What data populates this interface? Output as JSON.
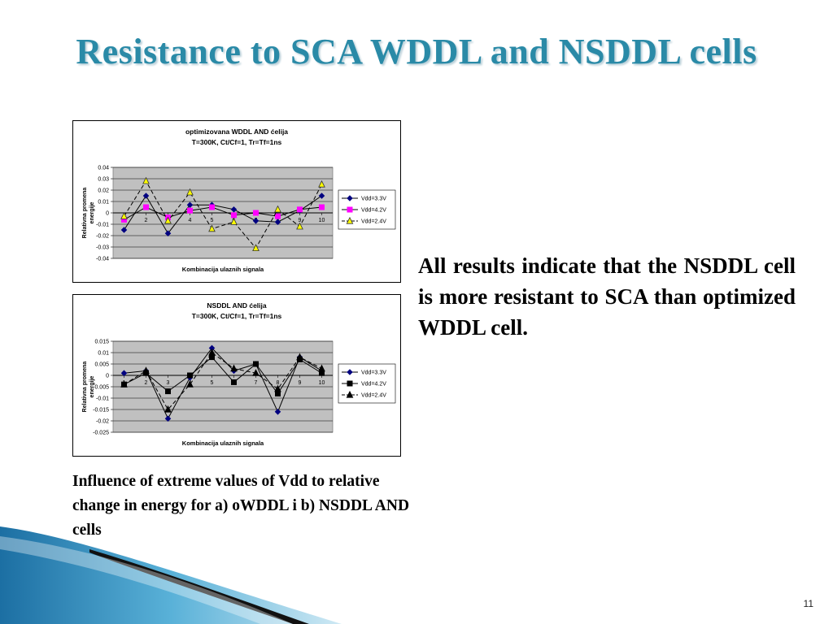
{
  "slide": {
    "title": "Resistance to SCA WDDL and NSDDL cells",
    "body_text": "All results indicate that the NSDDL cell is more resistant to SCA than  optimized WDDL cell.",
    "caption": "Influence of extreme values of Vdd to relative change in energy for a) oWDDL i b) NSDDL AND cells",
    "page_number": "11"
  },
  "colors": {
    "title": "#2a8aa7",
    "plot_area": "#c0c0c0",
    "series_3_3": "#000080",
    "series_4_2_a": "#ff00ff",
    "series_2_4_a": "#ffff00",
    "swoosh_blue": "#2f86b8"
  },
  "chart_data": [
    {
      "type": "line",
      "title": "optimizovana WDDL AND ćelija",
      "subtitle": "T=300K, Ct/Cf=1, Tr=Tf=1ns",
      "xlabel": "Kombinacija ulaznih signala",
      "ylabel": "Relativna promena energije",
      "x": [
        1,
        2,
        3,
        4,
        5,
        6,
        7,
        8,
        9,
        10
      ],
      "ylim": [
        -0.04,
        0.04
      ],
      "yticks": [
        "0.04",
        "0.03",
        "0.02",
        "0.01",
        "0",
        "-0.01",
        "-0.02",
        "-0.03",
        "-0.04"
      ],
      "xticks": [
        "1",
        "2",
        "3",
        "4",
        "5",
        "6",
        "7",
        "8",
        "9",
        "10"
      ],
      "legend_position": "right",
      "grid": true,
      "series": [
        {
          "name": "Vdd=3.3V",
          "values": [
            -0.015,
            0.015,
            -0.018,
            0.007,
            0.007,
            0.003,
            -0.007,
            -0.008,
            0.002,
            0.015
          ],
          "line": "solid",
          "marker": "diamond",
          "color": "#000080"
        },
        {
          "name": "Vdd=4.2V",
          "values": [
            -0.006,
            0.005,
            -0.004,
            0.002,
            0.005,
            -0.002,
            0.0,
            -0.003,
            0.003,
            0.005
          ],
          "line": "solid",
          "marker": "square",
          "color": "#ff00ff"
        },
        {
          "name": "Vdd=2.4V",
          "values": [
            -0.003,
            0.028,
            -0.007,
            0.018,
            -0.014,
            -0.008,
            -0.031,
            0.003,
            -0.012,
            0.025
          ],
          "line": "dashed",
          "marker": "triangle",
          "color": "#ffff00"
        }
      ]
    },
    {
      "type": "line",
      "title": "NSDDL AND ćelija",
      "subtitle": "T=300K, Ct/Cf=1, Tr=Tf=1ns",
      "xlabel": "Kombinacija ulaznih signala",
      "ylabel": "Relativna promena energije",
      "x": [
        1,
        2,
        3,
        4,
        5,
        6,
        7,
        8,
        9,
        10
      ],
      "ylim": [
        -0.025,
        0.015
      ],
      "yticks": [
        "0.015",
        "0.01",
        "0.005",
        "0",
        "-0.005",
        "-0.01",
        "-0.015",
        "-0.02",
        "-0.025"
      ],
      "xticks": [
        "1",
        "2",
        "3",
        "4",
        "5",
        "6",
        "7",
        "8",
        "9",
        "10"
      ],
      "legend_position": "right",
      "grid": true,
      "series": [
        {
          "name": "Vdd=3.3V",
          "values": [
            0.001,
            0.002,
            -0.019,
            -0.001,
            0.012,
            0.002,
            0.005,
            -0.016,
            0.008,
            0.002
          ],
          "line": "solid",
          "marker": "diamond",
          "color": "#000080"
        },
        {
          "name": "Vdd=4.2V",
          "values": [
            -0.004,
            0.001,
            -0.007,
            0.0,
            0.008,
            -0.003,
            0.005,
            -0.008,
            0.007,
            0.001
          ],
          "line": "solid",
          "marker": "square",
          "color": "#000000"
        },
        {
          "name": "Vdd=2.4V",
          "values": [
            -0.004,
            0.002,
            -0.015,
            -0.004,
            0.01,
            0.003,
            0.001,
            -0.006,
            0.008,
            0.003
          ],
          "line": "dashed",
          "marker": "triangle",
          "color": "#000000"
        }
      ]
    }
  ]
}
